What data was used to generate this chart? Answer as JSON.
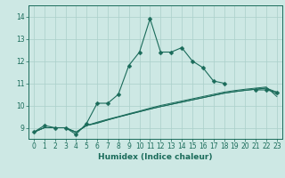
{
  "title": "",
  "xlabel": "Humidex (Indice chaleur)",
  "xlim": [
    -0.5,
    23.5
  ],
  "ylim": [
    8.5,
    14.5
  ],
  "yticks": [
    9,
    10,
    11,
    12,
    13,
    14
  ],
  "xticks": [
    0,
    1,
    2,
    3,
    4,
    5,
    6,
    7,
    8,
    9,
    10,
    11,
    12,
    13,
    14,
    15,
    16,
    17,
    18,
    19,
    20,
    21,
    22,
    23
  ],
  "bg_color": "#cde8e4",
  "grid_color": "#aacfca",
  "line_color": "#1a6b5a",
  "main_line": {
    "x": [
      0,
      1,
      2,
      3,
      4,
      5,
      6,
      7,
      8,
      9,
      10,
      11,
      12,
      13,
      14,
      15,
      16,
      17,
      18,
      19,
      20,
      21,
      22,
      23
    ],
    "y": [
      8.8,
      9.1,
      9.0,
      9.0,
      8.7,
      9.2,
      10.1,
      10.1,
      10.5,
      11.8,
      12.4,
      13.9,
      12.4,
      12.4,
      12.6,
      12.0,
      11.7,
      11.1,
      11.0,
      null,
      null,
      10.7,
      10.7,
      10.6
    ]
  },
  "flat_lines": [
    [
      8.8,
      9.0,
      9.0,
      9.0,
      8.8,
      9.1,
      9.2,
      9.35,
      9.48,
      9.6,
      9.72,
      9.84,
      9.95,
      10.05,
      10.15,
      10.25,
      10.35,
      10.45,
      10.55,
      10.62,
      10.68,
      10.73,
      10.78,
      10.6
    ],
    [
      8.8,
      9.0,
      9.0,
      9.0,
      8.8,
      9.1,
      9.22,
      9.35,
      9.48,
      9.6,
      9.72,
      9.84,
      9.95,
      10.05,
      10.15,
      10.25,
      10.35,
      10.45,
      10.55,
      10.62,
      10.68,
      10.73,
      10.78,
      10.5
    ],
    [
      8.8,
      9.0,
      9.0,
      9.0,
      8.8,
      9.1,
      9.25,
      9.38,
      9.5,
      9.63,
      9.75,
      9.88,
      10.0,
      10.1,
      10.2,
      10.3,
      10.4,
      10.5,
      10.6,
      10.67,
      10.73,
      10.78,
      10.83,
      10.4
    ]
  ]
}
